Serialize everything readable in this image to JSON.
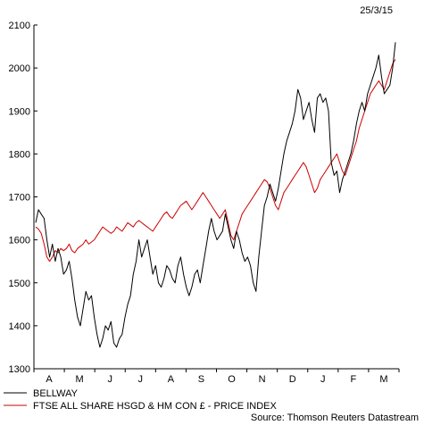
{
  "chart_data": {
    "type": "line",
    "date_label": "25/3/15",
    "source": "Source: Thomson Reuters Datastream",
    "ylim": [
      1300,
      2100
    ],
    "yticks": [
      1300,
      1400,
      1500,
      1600,
      1700,
      1800,
      1900,
      2000,
      2100
    ],
    "xticks": [
      "A",
      "M",
      "J",
      "J",
      "A",
      "S",
      "O",
      "N",
      "D",
      "J",
      "F",
      "M"
    ],
    "grid": false,
    "legend_position": "bottom-left",
    "series": [
      {
        "name": "BELLWAY",
        "color": "#000000",
        "values": [
          [
            0,
            1640
          ],
          [
            1,
            1670
          ],
          [
            2,
            1660
          ],
          [
            3,
            1650
          ],
          [
            4,
            1600
          ],
          [
            5,
            1560
          ],
          [
            6,
            1590
          ],
          [
            7,
            1550
          ],
          [
            8,
            1580
          ],
          [
            9,
            1560
          ],
          [
            10,
            1520
          ],
          [
            11,
            1530
          ],
          [
            12,
            1550
          ],
          [
            13,
            1510
          ],
          [
            14,
            1460
          ],
          [
            15,
            1420
          ],
          [
            16,
            1400
          ],
          [
            17,
            1440
          ],
          [
            18,
            1480
          ],
          [
            19,
            1460
          ],
          [
            20,
            1470
          ],
          [
            21,
            1420
          ],
          [
            22,
            1380
          ],
          [
            23,
            1350
          ],
          [
            24,
            1370
          ],
          [
            25,
            1400
          ],
          [
            26,
            1390
          ],
          [
            27,
            1410
          ],
          [
            28,
            1360
          ],
          [
            29,
            1350
          ],
          [
            30,
            1370
          ],
          [
            31,
            1380
          ],
          [
            32,
            1420
          ],
          [
            33,
            1450
          ],
          [
            34,
            1470
          ],
          [
            35,
            1520
          ],
          [
            36,
            1550
          ],
          [
            37,
            1600
          ],
          [
            38,
            1560
          ],
          [
            39,
            1580
          ],
          [
            40,
            1600
          ],
          [
            41,
            1560
          ],
          [
            42,
            1520
          ],
          [
            43,
            1540
          ],
          [
            44,
            1500
          ],
          [
            45,
            1490
          ],
          [
            46,
            1510
          ],
          [
            47,
            1540
          ],
          [
            48,
            1530
          ],
          [
            49,
            1510
          ],
          [
            50,
            1500
          ],
          [
            51,
            1540
          ],
          [
            52,
            1560
          ],
          [
            53,
            1520
          ],
          [
            54,
            1490
          ],
          [
            55,
            1470
          ],
          [
            56,
            1490
          ],
          [
            57,
            1520
          ],
          [
            58,
            1530
          ],
          [
            59,
            1500
          ],
          [
            60,
            1540
          ],
          [
            61,
            1580
          ],
          [
            62,
            1620
          ],
          [
            63,
            1650
          ],
          [
            64,
            1620
          ],
          [
            65,
            1600
          ],
          [
            66,
            1610
          ],
          [
            67,
            1620
          ],
          [
            68,
            1660
          ],
          [
            69,
            1630
          ],
          [
            70,
            1600
          ],
          [
            71,
            1580
          ],
          [
            72,
            1620
          ],
          [
            73,
            1600
          ],
          [
            74,
            1570
          ],
          [
            75,
            1550
          ],
          [
            76,
            1560
          ],
          [
            77,
            1540
          ],
          [
            78,
            1500
          ],
          [
            79,
            1480
          ],
          [
            80,
            1560
          ],
          [
            81,
            1620
          ],
          [
            82,
            1680
          ],
          [
            83,
            1700
          ],
          [
            84,
            1730
          ],
          [
            85,
            1710
          ],
          [
            86,
            1690
          ],
          [
            87,
            1720
          ],
          [
            88,
            1760
          ],
          [
            89,
            1800
          ],
          [
            90,
            1830
          ],
          [
            91,
            1850
          ],
          [
            92,
            1870
          ],
          [
            93,
            1900
          ],
          [
            94,
            1950
          ],
          [
            95,
            1930
          ],
          [
            96,
            1880
          ],
          [
            97,
            1900
          ],
          [
            98,
            1920
          ],
          [
            99,
            1880
          ],
          [
            100,
            1850
          ],
          [
            101,
            1930
          ],
          [
            102,
            1940
          ],
          [
            103,
            1920
          ],
          [
            104,
            1930
          ],
          [
            105,
            1900
          ],
          [
            106,
            1780
          ],
          [
            107,
            1750
          ],
          [
            108,
            1760
          ],
          [
            109,
            1710
          ],
          [
            110,
            1740
          ],
          [
            111,
            1760
          ],
          [
            112,
            1780
          ],
          [
            113,
            1800
          ],
          [
            114,
            1830
          ],
          [
            115,
            1870
          ],
          [
            116,
            1900
          ],
          [
            117,
            1920
          ],
          [
            118,
            1900
          ],
          [
            119,
            1940
          ],
          [
            120,
            1960
          ],
          [
            121,
            1980
          ],
          [
            122,
            2000
          ],
          [
            123,
            2030
          ],
          [
            124,
            1980
          ],
          [
            125,
            1940
          ],
          [
            126,
            1950
          ],
          [
            127,
            1960
          ],
          [
            128,
            2000
          ],
          [
            129,
            2060
          ]
        ]
      },
      {
        "name": "FTSE ALL SHARE HSGD & HM CON £ - PRICE INDEX",
        "color": "#cc0000",
        "values": [
          [
            0,
            1630
          ],
          [
            1,
            1625
          ],
          [
            2,
            1615
          ],
          [
            3,
            1590
          ],
          [
            4,
            1560
          ],
          [
            5,
            1550
          ],
          [
            6,
            1560
          ],
          [
            7,
            1575
          ],
          [
            8,
            1570
          ],
          [
            9,
            1580
          ],
          [
            10,
            1575
          ],
          [
            11,
            1580
          ],
          [
            12,
            1590
          ],
          [
            13,
            1575
          ],
          [
            14,
            1570
          ],
          [
            15,
            1580
          ],
          [
            16,
            1585
          ],
          [
            17,
            1590
          ],
          [
            18,
            1600
          ],
          [
            19,
            1590
          ],
          [
            20,
            1595
          ],
          [
            21,
            1600
          ],
          [
            22,
            1610
          ],
          [
            23,
            1620
          ],
          [
            24,
            1630
          ],
          [
            25,
            1625
          ],
          [
            26,
            1620
          ],
          [
            27,
            1615
          ],
          [
            28,
            1620
          ],
          [
            29,
            1630
          ],
          [
            30,
            1625
          ],
          [
            31,
            1620
          ],
          [
            32,
            1630
          ],
          [
            33,
            1640
          ],
          [
            34,
            1635
          ],
          [
            35,
            1630
          ],
          [
            36,
            1640
          ],
          [
            37,
            1645
          ],
          [
            38,
            1640
          ],
          [
            39,
            1635
          ],
          [
            40,
            1630
          ],
          [
            41,
            1625
          ],
          [
            42,
            1620
          ],
          [
            43,
            1630
          ],
          [
            44,
            1640
          ],
          [
            45,
            1650
          ],
          [
            46,
            1660
          ],
          [
            47,
            1665
          ],
          [
            48,
            1655
          ],
          [
            49,
            1650
          ],
          [
            50,
            1660
          ],
          [
            51,
            1670
          ],
          [
            52,
            1680
          ],
          [
            53,
            1685
          ],
          [
            54,
            1690
          ],
          [
            55,
            1680
          ],
          [
            56,
            1670
          ],
          [
            57,
            1680
          ],
          [
            58,
            1690
          ],
          [
            59,
            1700
          ],
          [
            60,
            1710
          ],
          [
            61,
            1700
          ],
          [
            62,
            1690
          ],
          [
            63,
            1680
          ],
          [
            64,
            1670
          ],
          [
            65,
            1660
          ],
          [
            66,
            1650
          ],
          [
            67,
            1660
          ],
          [
            68,
            1670
          ],
          [
            69,
            1640
          ],
          [
            70,
            1610
          ],
          [
            71,
            1600
          ],
          [
            72,
            1620
          ],
          [
            73,
            1640
          ],
          [
            74,
            1660
          ],
          [
            75,
            1670
          ],
          [
            76,
            1680
          ],
          [
            77,
            1690
          ],
          [
            78,
            1700
          ],
          [
            79,
            1710
          ],
          [
            80,
            1720
          ],
          [
            81,
            1730
          ],
          [
            82,
            1740
          ],
          [
            83,
            1735
          ],
          [
            84,
            1720
          ],
          [
            85,
            1700
          ],
          [
            86,
            1680
          ],
          [
            87,
            1670
          ],
          [
            88,
            1690
          ],
          [
            89,
            1710
          ],
          [
            90,
            1720
          ],
          [
            91,
            1730
          ],
          [
            92,
            1740
          ],
          [
            93,
            1750
          ],
          [
            94,
            1760
          ],
          [
            95,
            1770
          ],
          [
            96,
            1780
          ],
          [
            97,
            1770
          ],
          [
            98,
            1750
          ],
          [
            99,
            1730
          ],
          [
            100,
            1710
          ],
          [
            101,
            1720
          ],
          [
            102,
            1740
          ],
          [
            103,
            1750
          ],
          [
            104,
            1760
          ],
          [
            105,
            1770
          ],
          [
            106,
            1780
          ],
          [
            107,
            1790
          ],
          [
            108,
            1800
          ],
          [
            109,
            1780
          ],
          [
            110,
            1760
          ],
          [
            111,
            1750
          ],
          [
            112,
            1770
          ],
          [
            113,
            1790
          ],
          [
            114,
            1810
          ],
          [
            115,
            1830
          ],
          [
            116,
            1860
          ],
          [
            117,
            1880
          ],
          [
            118,
            1900
          ],
          [
            119,
            1920
          ],
          [
            120,
            1940
          ],
          [
            121,
            1950
          ],
          [
            122,
            1960
          ],
          [
            123,
            1970
          ],
          [
            124,
            1960
          ],
          [
            125,
            1950
          ],
          [
            126,
            1970
          ],
          [
            127,
            1990
          ],
          [
            128,
            2010
          ],
          [
            129,
            2020
          ]
        ]
      }
    ]
  }
}
